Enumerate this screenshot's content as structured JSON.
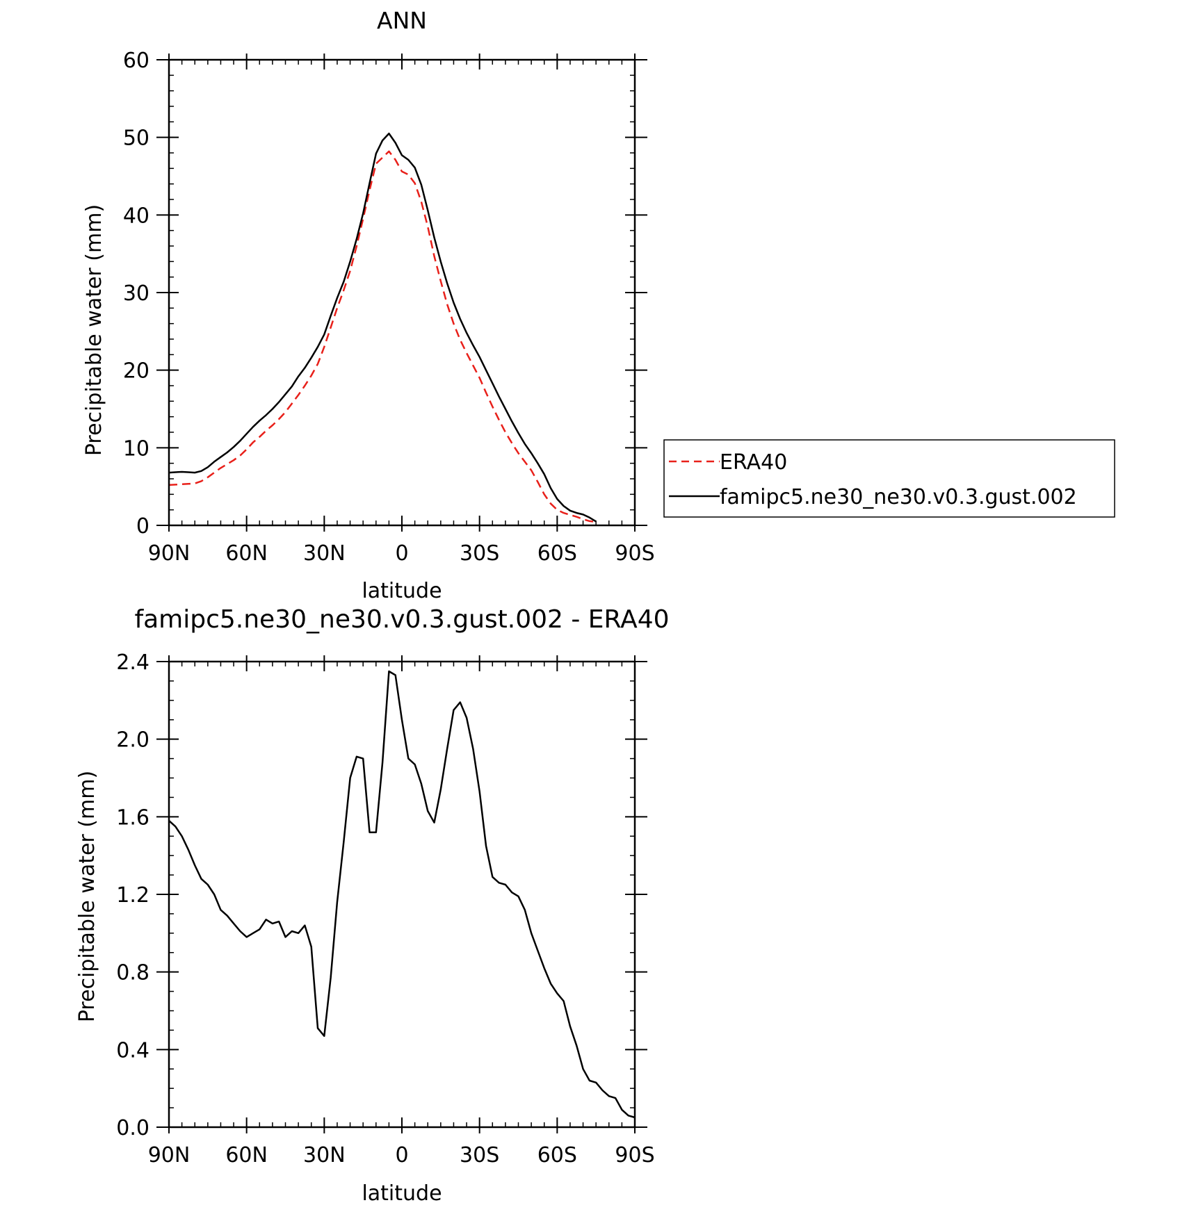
{
  "chart_data": [
    {
      "type": "line",
      "title": "ANN",
      "xlabel": "latitude",
      "ylabel": "Precipitable water (mm)",
      "xlim": [
        90,
        -90
      ],
      "ylim": [
        0,
        60
      ],
      "x_ticks": [
        {
          "value": 90,
          "label": "90N"
        },
        {
          "value": 60,
          "label": "60N"
        },
        {
          "value": 30,
          "label": "30N"
        },
        {
          "value": 0,
          "label": "0"
        },
        {
          "value": -30,
          "label": "30S"
        },
        {
          "value": -60,
          "label": "60S"
        },
        {
          "value": -90,
          "label": "90S"
        }
      ],
      "y_ticks": [
        {
          "value": 0,
          "label": "0"
        },
        {
          "value": 10,
          "label": "10"
        },
        {
          "value": 20,
          "label": "20"
        },
        {
          "value": 30,
          "label": "30"
        },
        {
          "value": 40,
          "label": "40"
        },
        {
          "value": 50,
          "label": "50"
        },
        {
          "value": 60,
          "label": "60"
        }
      ],
      "legend_position": "right",
      "series": [
        {
          "name": "ERA40",
          "color": "#e8201a",
          "dash": "dashed",
          "points": [
            [
              90,
              5.2
            ],
            [
              87.5,
              5.25
            ],
            [
              85,
              5.3
            ],
            [
              82.5,
              5.35
            ],
            [
              80,
              5.4
            ],
            [
              77.5,
              5.7
            ],
            [
              75,
              6.2
            ],
            [
              72.5,
              6.8
            ],
            [
              70,
              7.4
            ],
            [
              67.5,
              7.9
            ],
            [
              65,
              8.4
            ],
            [
              62.5,
              9.0
            ],
            [
              60,
              9.8
            ],
            [
              57.5,
              10.7
            ],
            [
              55,
              11.4
            ],
            [
              52.5,
              12.2
            ],
            [
              50,
              12.9
            ],
            [
              47.5,
              13.7
            ],
            [
              45,
              14.6
            ],
            [
              42.5,
              15.7
            ],
            [
              40,
              16.8
            ],
            [
              37.5,
              18.0
            ],
            [
              35,
              19.3
            ],
            [
              32.5,
              20.8
            ],
            [
              30,
              23.0
            ],
            [
              27.5,
              25.5
            ],
            [
              25,
              28.0
            ],
            [
              22.5,
              30.3
            ],
            [
              20,
              32.8
            ],
            [
              17.5,
              36.0
            ],
            [
              15,
              39.5
            ],
            [
              12.5,
              43.2
            ],
            [
              10,
              46.6
            ],
            [
              7.5,
              47.4
            ],
            [
              5,
              48.2
            ],
            [
              2.5,
              47.1
            ],
            [
              0,
              45.6
            ],
            [
              -2.5,
              45.2
            ],
            [
              -5,
              44.1
            ],
            [
              -7.5,
              41.7
            ],
            [
              -10,
              38.5
            ],
            [
              -12.5,
              34.7
            ],
            [
              -15,
              31.5
            ],
            [
              -17.5,
              28.5
            ],
            [
              -20,
              26.0
            ],
            [
              -22.5,
              23.9
            ],
            [
              -25,
              22.2
            ],
            [
              -27.5,
              20.6
            ],
            [
              -30,
              19.0
            ],
            [
              -32.5,
              17.1
            ],
            [
              -35,
              15.3
            ],
            [
              -37.5,
              13.6
            ],
            [
              -40,
              12.0
            ],
            [
              -42.5,
              10.6
            ],
            [
              -45,
              9.3
            ],
            [
              -47.5,
              8.2
            ],
            [
              -50,
              7.1
            ],
            [
              -52.5,
              5.6
            ],
            [
              -55,
              4.0
            ],
            [
              -57.5,
              2.8
            ],
            [
              -60,
              2.0
            ],
            [
              -62.5,
              1.6
            ],
            [
              -65,
              1.35
            ],
            [
              -67.5,
              1.1
            ],
            [
              -70,
              0.8
            ],
            [
              -72.5,
              0.55
            ],
            [
              -75,
              0.45
            ]
          ]
        },
        {
          "name": "famipc5.ne30_ne30.v0.3.gust.002",
          "color": "#000000",
          "dash": "solid",
          "points": [
            [
              90,
              6.8
            ],
            [
              87.5,
              6.85
            ],
            [
              85,
              6.9
            ],
            [
              82.5,
              6.85
            ],
            [
              80,
              6.8
            ],
            [
              77.5,
              7.0
            ],
            [
              75,
              7.5
            ],
            [
              72.5,
              8.2
            ],
            [
              70,
              8.8
            ],
            [
              67.5,
              9.4
            ],
            [
              65,
              10.1
            ],
            [
              62.5,
              10.9
            ],
            [
              60,
              11.8
            ],
            [
              57.5,
              12.7
            ],
            [
              55,
              13.5
            ],
            [
              52.5,
              14.2
            ],
            [
              50,
              15.0
            ],
            [
              47.5,
              15.9
            ],
            [
              45,
              16.9
            ],
            [
              42.5,
              17.9
            ],
            [
              40,
              19.2
            ],
            [
              37.5,
              20.3
            ],
            [
              35,
              21.6
            ],
            [
              32.5,
              23.0
            ],
            [
              30,
              24.6
            ],
            [
              27.5,
              27.0
            ],
            [
              25,
              29.3
            ],
            [
              22.5,
              31.4
            ],
            [
              20,
              34.0
            ],
            [
              17.5,
              36.9
            ],
            [
              15,
              40.2
            ],
            [
              12.5,
              44.1
            ],
            [
              10,
              47.9
            ],
            [
              7.5,
              49.6
            ],
            [
              5,
              50.5
            ],
            [
              2.5,
              49.3
            ],
            [
              0,
              47.7
            ],
            [
              -2.5,
              47.1
            ],
            [
              -5,
              46.1
            ],
            [
              -7.5,
              43.9
            ],
            [
              -10,
              40.6
            ],
            [
              -12.5,
              37.1
            ],
            [
              -15,
              34.0
            ],
            [
              -17.5,
              31.2
            ],
            [
              -20,
              28.7
            ],
            [
              -22.5,
              26.6
            ],
            [
              -25,
              24.8
            ],
            [
              -27.5,
              23.2
            ],
            [
              -30,
              21.7
            ],
            [
              -32.5,
              20.0
            ],
            [
              -35,
              18.3
            ],
            [
              -37.5,
              16.6
            ],
            [
              -40,
              15.0
            ],
            [
              -42.5,
              13.4
            ],
            [
              -45,
              11.9
            ],
            [
              -47.5,
              10.5
            ],
            [
              -50,
              9.3
            ],
            [
              -52.5,
              8.0
            ],
            [
              -55,
              6.6
            ],
            [
              -57.5,
              4.8
            ],
            [
              -60,
              3.4
            ],
            [
              -62.5,
              2.5
            ],
            [
              -65,
              1.9
            ],
            [
              -67.5,
              1.6
            ],
            [
              -70,
              1.4
            ],
            [
              -72.5,
              1.0
            ],
            [
              -75,
              0.5
            ]
          ]
        }
      ]
    },
    {
      "type": "line",
      "title": "famipc5.ne30_ne30.v0.3.gust.002 - ERA40",
      "xlabel": "latitude",
      "ylabel": "Precipitable water (mm)",
      "xlim": [
        90,
        -90
      ],
      "ylim": [
        0,
        2.4
      ],
      "x_ticks": [
        {
          "value": 90,
          "label": "90N"
        },
        {
          "value": 60,
          "label": "60N"
        },
        {
          "value": 30,
          "label": "30N"
        },
        {
          "value": 0,
          "label": "0"
        },
        {
          "value": -30,
          "label": "30S"
        },
        {
          "value": -60,
          "label": "60S"
        },
        {
          "value": -90,
          "label": "90S"
        }
      ],
      "y_ticks": [
        {
          "value": 0,
          "label": "0.0"
        },
        {
          "value": 0.4,
          "label": "0.4"
        },
        {
          "value": 0.8,
          "label": "0.8"
        },
        {
          "value": 1.2,
          "label": "1.2"
        },
        {
          "value": 1.6,
          "label": "1.6"
        },
        {
          "value": 2.0,
          "label": "2.0"
        },
        {
          "value": 2.4,
          "label": "2.4"
        }
      ],
      "series": [
        {
          "color": "#000000",
          "dash": "solid",
          "points": [
            [
              90,
              1.58
            ],
            [
              87.5,
              1.55
            ],
            [
              85,
              1.5
            ],
            [
              82.5,
              1.43
            ],
            [
              80,
              1.35
            ],
            [
              77.5,
              1.28
            ],
            [
              75,
              1.25
            ],
            [
              72.5,
              1.2
            ],
            [
              70,
              1.12
            ],
            [
              67.5,
              1.09
            ],
            [
              65,
              1.05
            ],
            [
              62.5,
              1.01
            ],
            [
              60,
              0.98
            ],
            [
              57.5,
              1.0
            ],
            [
              55,
              1.02
            ],
            [
              52.5,
              1.07
            ],
            [
              50,
              1.05
            ],
            [
              47.5,
              1.06
            ],
            [
              45,
              0.98
            ],
            [
              42.5,
              1.01
            ],
            [
              40,
              1.0
            ],
            [
              37.5,
              1.04
            ],
            [
              35,
              0.93
            ],
            [
              32.5,
              0.51
            ],
            [
              30,
              0.47
            ],
            [
              27.5,
              0.77
            ],
            [
              25,
              1.16
            ],
            [
              22.5,
              1.47
            ],
            [
              20,
              1.8
            ],
            [
              17.5,
              1.91
            ],
            [
              15,
              1.9
            ],
            [
              12.5,
              1.52
            ],
            [
              10,
              1.52
            ],
            [
              7.5,
              1.88
            ],
            [
              5,
              2.35
            ],
            [
              2.5,
              2.33
            ],
            [
              0,
              2.1
            ],
            [
              -2.5,
              1.9
            ],
            [
              -5,
              1.87
            ],
            [
              -7.5,
              1.77
            ],
            [
              -10,
              1.63
            ],
            [
              -12.5,
              1.57
            ],
            [
              -15,
              1.74
            ],
            [
              -17.5,
              1.95
            ],
            [
              -20,
              2.15
            ],
            [
              -22.5,
              2.19
            ],
            [
              -25,
              2.11
            ],
            [
              -27.5,
              1.95
            ],
            [
              -30,
              1.73
            ],
            [
              -32.5,
              1.45
            ],
            [
              -35,
              1.29
            ],
            [
              -37.5,
              1.26
            ],
            [
              -40,
              1.25
            ],
            [
              -42.5,
              1.21
            ],
            [
              -45,
              1.19
            ],
            [
              -47.5,
              1.12
            ],
            [
              -50,
              1.0
            ],
            [
              -52.5,
              0.91
            ],
            [
              -55,
              0.82
            ],
            [
              -57.5,
              0.74
            ],
            [
              -60,
              0.69
            ],
            [
              -62.5,
              0.65
            ],
            [
              -65,
              0.52
            ],
            [
              -67.5,
              0.42
            ],
            [
              -70,
              0.3
            ],
            [
              -72.5,
              0.24
            ],
            [
              -75,
              0.23
            ],
            [
              -77.5,
              0.19
            ],
            [
              -80,
              0.16
            ],
            [
              -82.5,
              0.15
            ],
            [
              -85,
              0.09
            ],
            [
              -87.5,
              0.06
            ],
            [
              -90,
              0.05
            ]
          ]
        }
      ]
    }
  ]
}
